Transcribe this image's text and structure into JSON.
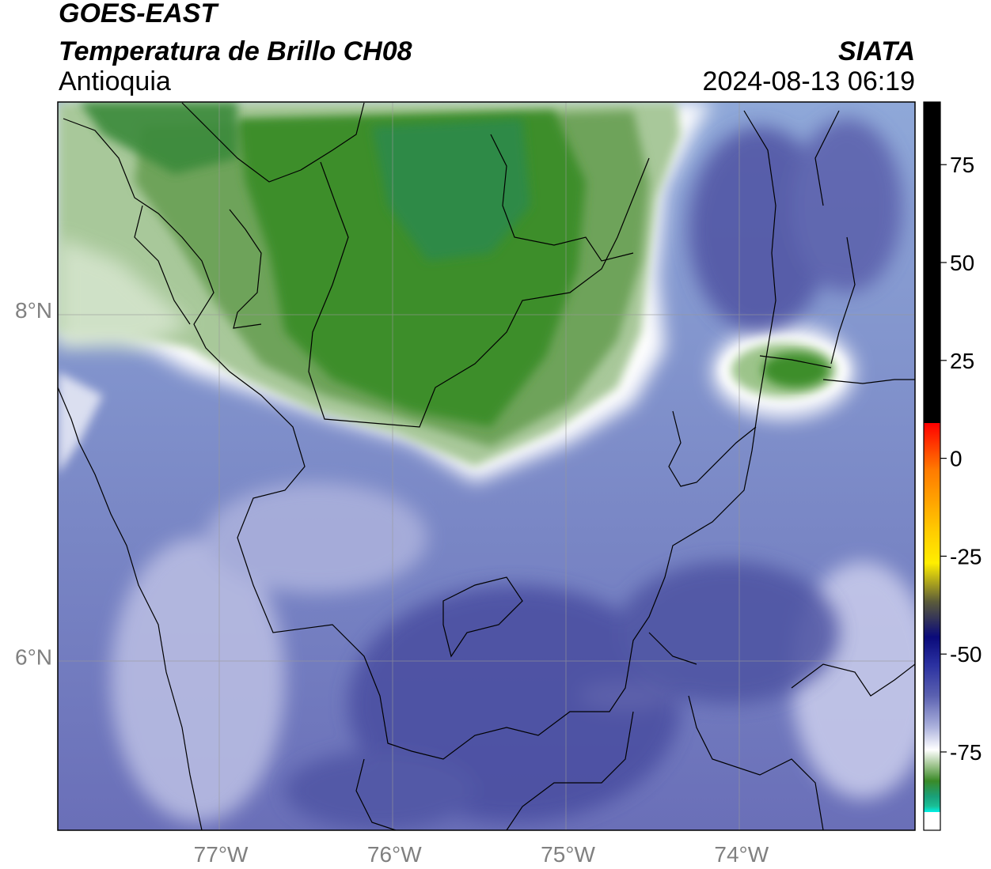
{
  "header": {
    "satellite": "GOES-EAST",
    "product": "Temperatura de Brillo CH08",
    "region": "Antioquia",
    "agency": "SIATA",
    "datetime": "2024-08-13 06:19"
  },
  "map": {
    "lon_range": [
      -77.94,
      -73.0
    ],
    "lat_range": [
      5.0,
      9.2
    ],
    "lon_ticks": [
      {
        "value": -77,
        "label": "77°W"
      },
      {
        "value": -76,
        "label": "76°W"
      },
      {
        "value": -75,
        "label": "75°W"
      },
      {
        "value": -74,
        "label": "74°W"
      }
    ],
    "lat_ticks": [
      {
        "value": 8,
        "label": "8°N"
      },
      {
        "value": 6,
        "label": "6°N"
      }
    ],
    "gridlines": true
  },
  "colorbar": {
    "range": [
      -95,
      91
    ],
    "ticks": [
      {
        "value": 75,
        "label": "75"
      },
      {
        "value": 50,
        "label": "50"
      },
      {
        "value": 25,
        "label": "25"
      },
      {
        "value": 0,
        "label": "0"
      },
      {
        "value": -25,
        "label": "-25"
      },
      {
        "value": -50,
        "label": "-50"
      },
      {
        "value": -75,
        "label": "-75"
      }
    ],
    "colors": {
      "black": "#000000",
      "red": "#e60000",
      "orange": "#ff8c00",
      "yellow": "#ffee00",
      "navy": "#0a0a7a",
      "slate_blue": "#5056a6",
      "lavender": "#b0b4e0",
      "white": "#ffffff",
      "green": "#3a8a28",
      "teal": "#1abf96",
      "cyan": "#00f0e6"
    }
  }
}
